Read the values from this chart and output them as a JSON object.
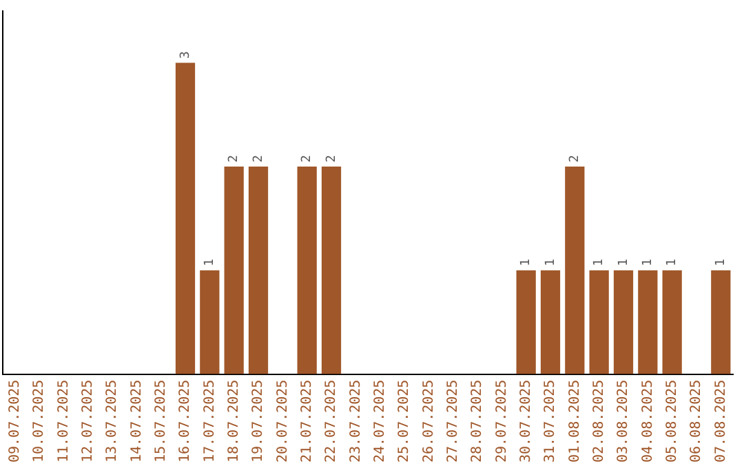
{
  "chart_data": {
    "type": "bar",
    "categories": [
      "09.07.2025",
      "10.07.2025",
      "11.07.2025",
      "12.07.2025",
      "13.07.2025",
      "14.07.2025",
      "15.07.2025",
      "16.07.2025",
      "17.07.2025",
      "18.07.2025",
      "19.07.2025",
      "20.07.2025",
      "21.07.2025",
      "22.07.2025",
      "23.07.2025",
      "24.07.2025",
      "25.07.2025",
      "26.07.2025",
      "27.07.2025",
      "28.07.2025",
      "29.07.2025",
      "30.07.2025",
      "31.07.2025",
      "01.08.2025",
      "02.08.2025",
      "03.08.2025",
      "04.08.2025",
      "05.08.2025",
      "06.08.2025",
      "07.08.2025"
    ],
    "values": [
      0,
      0,
      0,
      0,
      0,
      0,
      0,
      3,
      1,
      2,
      2,
      0,
      2,
      2,
      0,
      0,
      0,
      0,
      0,
      0,
      0,
      1,
      1,
      2,
      1,
      1,
      1,
      1,
      0,
      1
    ],
    "value_labels": [
      null,
      null,
      null,
      null,
      null,
      null,
      null,
      "3",
      "1",
      "2",
      "2",
      null,
      "2",
      "2",
      null,
      null,
      null,
      null,
      null,
      null,
      null,
      "1",
      "1",
      "2",
      "1",
      "1",
      "1",
      "1",
      null,
      "1"
    ],
    "color": "#a0572a",
    "tick_labels": "x",
    "grid": false,
    "legend": false
  }
}
